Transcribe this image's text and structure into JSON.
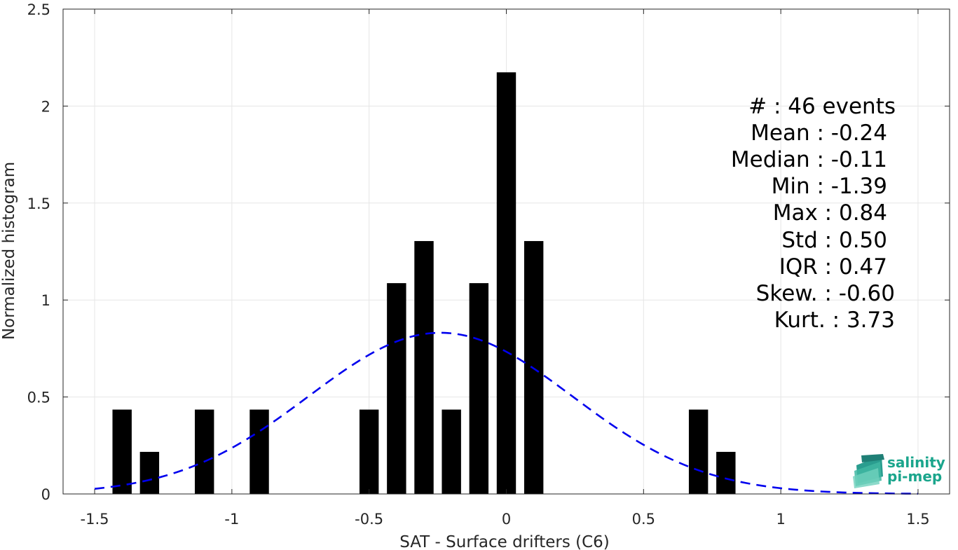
{
  "chart_data": {
    "type": "bar",
    "xlabel": "SAT - Surface drifters (C6)",
    "ylabel": "Normalized histogram",
    "xlim": [
      -1.615,
      1.615
    ],
    "ylim": [
      0,
      2.5
    ],
    "x_ticks": [
      -1.5,
      -1,
      -0.5,
      0,
      0.5,
      1,
      1.5
    ],
    "x_tick_labels": [
      "-1.5",
      "-1",
      "-0.5",
      "0",
      "0.5",
      "1",
      "1.5"
    ],
    "y_ticks": [
      0,
      0.5,
      1,
      1.5,
      2,
      2.5
    ],
    "y_tick_labels": [
      "0",
      "0.5",
      "1",
      "1.5",
      "2",
      "2.5"
    ],
    "grid": true,
    "bar_width": 0.07,
    "bars": [
      {
        "x": -1.4,
        "value": 0.435
      },
      {
        "x": -1.3,
        "value": 0.217
      },
      {
        "x": -1.1,
        "value": 0.435
      },
      {
        "x": -0.9,
        "value": 0.435
      },
      {
        "x": -0.5,
        "value": 0.435
      },
      {
        "x": -0.4,
        "value": 1.087
      },
      {
        "x": -0.3,
        "value": 1.304
      },
      {
        "x": -0.2,
        "value": 0.435
      },
      {
        "x": -0.1,
        "value": 1.087
      },
      {
        "x": 0.0,
        "value": 2.174
      },
      {
        "x": 0.1,
        "value": 1.304
      },
      {
        "x": 0.7,
        "value": 0.435
      },
      {
        "x": 0.8,
        "value": 0.217
      }
    ],
    "fit_curve": {
      "type": "gaussian",
      "mean": -0.24,
      "std": 0.48,
      "x_range": [
        -1.5,
        1.5
      ],
      "color": "#0000ee",
      "style": "dashed"
    },
    "bar_color": "#000000"
  },
  "stats": [
    {
      "text": "#  : 46 events"
    },
    {
      "text": "Mean : -0.24"
    },
    {
      "text": "Median : -0.11"
    },
    {
      "text": "Min : -1.39"
    },
    {
      "text": "Max : 0.84"
    },
    {
      "text": "Std : 0.50"
    },
    {
      "text": "IQR : 0.47"
    },
    {
      "text": "Skew. : -0.60"
    },
    {
      "text": "Kurt. : 3.73"
    }
  ],
  "logo": {
    "line1": "salinity",
    "line2": "pi-mep"
  }
}
